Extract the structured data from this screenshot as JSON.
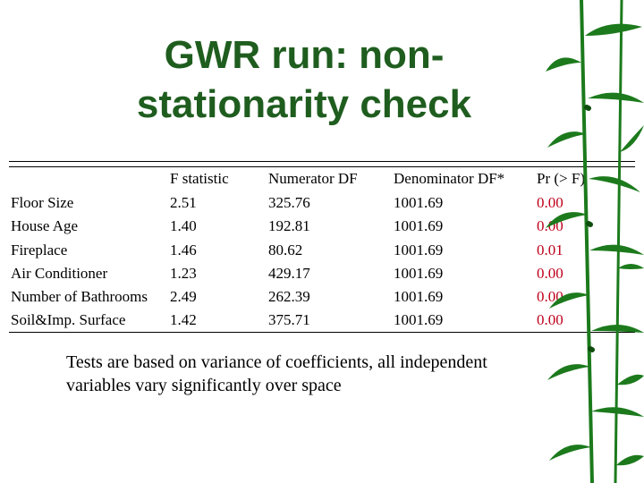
{
  "slide": {
    "title_line1": "GWR run: non-",
    "title_line2": "stationarity check",
    "note": "Tests are based on variance of coefficients, all independent variables vary significantly over space"
  },
  "table": {
    "headers": [
      "",
      "F statistic",
      "Numerator DF",
      "Denominator DF*",
      "Pr (> F)"
    ],
    "rows": [
      {
        "variable": "Floor Size",
        "f": "2.51",
        "num_df": "325.76",
        "den_df": "1001.69",
        "p": "0.00"
      },
      {
        "variable": "House Age",
        "f": "1.40",
        "num_df": "192.81",
        "den_df": "1001.69",
        "p": "0.00"
      },
      {
        "variable": "Fireplace",
        "f": "1.46",
        "num_df": "80.62",
        "den_df": "1001.69",
        "p": "0.01"
      },
      {
        "variable": "Air Conditioner",
        "f": "1.23",
        "num_df": "429.17",
        "den_df": "1001.69",
        "p": "0.00"
      },
      {
        "variable": "Number of Bathrooms",
        "f": "2.49",
        "num_df": "262.39",
        "den_df": "1001.69",
        "p": "0.00"
      },
      {
        "variable": "Soil&Imp. Surface",
        "f": "1.42",
        "num_df": "375.71",
        "den_df": "1001.69",
        "p": "0.00"
      }
    ]
  },
  "colors": {
    "title": "#1f5d1f",
    "pvalue": "#c0001b",
    "bamboo": "#1c7a1c"
  }
}
